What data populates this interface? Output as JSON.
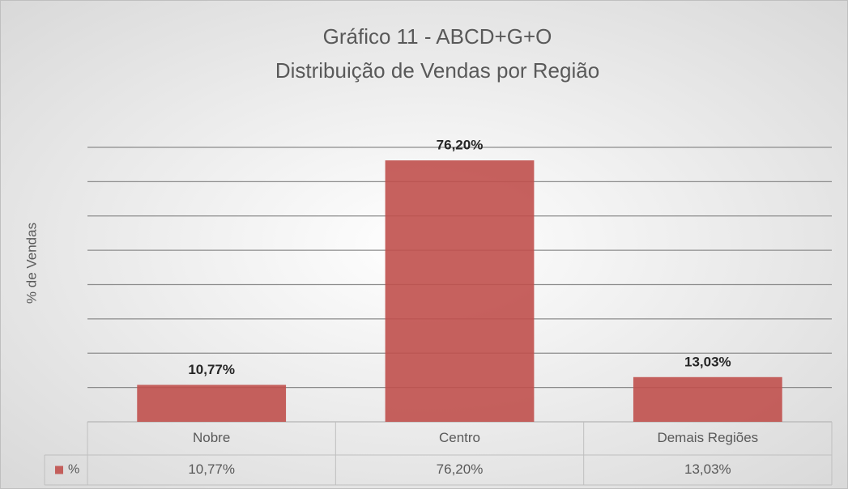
{
  "chart_data": {
    "type": "bar",
    "title": "Gráfico 11 - ABCD+G+O",
    "subtitle": "Distribuição de Vendas por Região",
    "y_label": "% de Vendas",
    "categories": [
      "Nobre",
      "Centro",
      "Demais Regiões"
    ],
    "series": [
      {
        "name": "%",
        "color": "#c0504d",
        "values": [
          10.77,
          76.2,
          13.03
        ],
        "value_labels": [
          "10,77%",
          "76,20%",
          "13,03%"
        ]
      }
    ],
    "ylim": [
      0,
      80
    ],
    "yticks": [
      0,
      10,
      20,
      30,
      40,
      50,
      60,
      70,
      80
    ],
    "grid": true
  }
}
